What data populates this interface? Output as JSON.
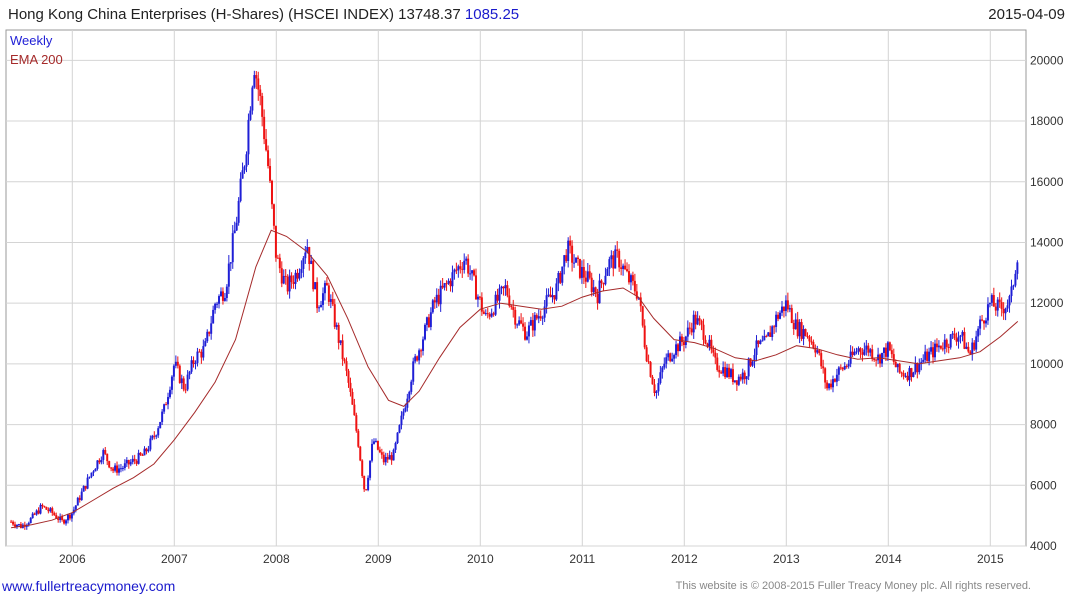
{
  "header": {
    "title": "Hong Kong China Enterprises (H-Shares) (HSCEI INDEX)",
    "price": "13748.37",
    "change": "1085.25",
    "date": "2015-04-09"
  },
  "footer": {
    "site": "www.fullertreacymoney.com",
    "copyright": "This website is © 2008-2015 Fuller Treacy Money plc. All rights reserved."
  },
  "colors": {
    "up": "#1f1fd6",
    "down": "#ee1111",
    "ema": "#a52a2a",
    "grid": "#d4d4d4"
  },
  "chart_data": {
    "type": "line",
    "x_unit": "year",
    "xlim": [
      2005.35,
      2015.35
    ],
    "ylim": [
      4000,
      21000
    ],
    "y_ticks": [
      4000,
      6000,
      8000,
      10000,
      12000,
      14000,
      16000,
      18000,
      20000
    ],
    "x_ticks": [
      2006,
      2007,
      2008,
      2009,
      2010,
      2011,
      2012,
      2013,
      2014,
      2015
    ],
    "grid": true,
    "legend_position": "top-left",
    "series": [
      {
        "name": "Weekly",
        "style": "candlestick",
        "points": [
          [
            2005.4,
            4800
          ],
          [
            2005.5,
            4650
          ],
          [
            2005.6,
            4900
          ],
          [
            2005.7,
            5300
          ],
          [
            2005.8,
            5100
          ],
          [
            2005.9,
            4800
          ],
          [
            2006.0,
            5100
          ],
          [
            2006.1,
            5800
          ],
          [
            2006.2,
            6500
          ],
          [
            2006.3,
            7100
          ],
          [
            2006.4,
            6500
          ],
          [
            2006.5,
            6600
          ],
          [
            2006.6,
            6800
          ],
          [
            2006.7,
            7000
          ],
          [
            2006.8,
            7600
          ],
          [
            2006.9,
            8500
          ],
          [
            2007.0,
            10000
          ],
          [
            2007.1,
            9200
          ],
          [
            2007.2,
            10200
          ],
          [
            2007.3,
            10500
          ],
          [
            2007.4,
            12000
          ],
          [
            2007.5,
            12500
          ],
          [
            2007.6,
            14500
          ],
          [
            2007.7,
            17000
          ],
          [
            2007.78,
            20000
          ],
          [
            2007.85,
            18500
          ],
          [
            2007.92,
            16500
          ],
          [
            2008.0,
            13500
          ],
          [
            2008.1,
            12500
          ],
          [
            2008.2,
            13000
          ],
          [
            2008.3,
            14000
          ],
          [
            2008.4,
            12000
          ],
          [
            2008.5,
            12500
          ],
          [
            2008.6,
            11000
          ],
          [
            2008.7,
            9500
          ],
          [
            2008.8,
            7500
          ],
          [
            2008.87,
            5700
          ],
          [
            2008.95,
            7500
          ],
          [
            2009.05,
            6800
          ],
          [
            2009.15,
            7000
          ],
          [
            2009.25,
            8500
          ],
          [
            2009.35,
            10000
          ],
          [
            2009.45,
            11000
          ],
          [
            2009.55,
            12000
          ],
          [
            2009.65,
            12500
          ],
          [
            2009.75,
            13000
          ],
          [
            2009.85,
            13500
          ],
          [
            2009.95,
            12500
          ],
          [
            2010.05,
            11500
          ],
          [
            2010.15,
            12000
          ],
          [
            2010.25,
            12500
          ],
          [
            2010.35,
            11500
          ],
          [
            2010.45,
            11000
          ],
          [
            2010.55,
            11500
          ],
          [
            2010.65,
            12000
          ],
          [
            2010.75,
            12500
          ],
          [
            2010.85,
            13800
          ],
          [
            2010.95,
            13200
          ],
          [
            2011.05,
            12800
          ],
          [
            2011.15,
            12300
          ],
          [
            2011.25,
            13300
          ],
          [
            2011.35,
            13500
          ],
          [
            2011.45,
            12800
          ],
          [
            2011.55,
            12300
          ],
          [
            2011.62,
            10500
          ],
          [
            2011.72,
            9000
          ],
          [
            2011.8,
            10000
          ],
          [
            2011.9,
            10500
          ],
          [
            2012.0,
            10800
          ],
          [
            2012.1,
            11500
          ],
          [
            2012.2,
            11000
          ],
          [
            2012.3,
            10000
          ],
          [
            2012.4,
            9800
          ],
          [
            2012.5,
            9500
          ],
          [
            2012.6,
            9700
          ],
          [
            2012.7,
            10500
          ],
          [
            2012.8,
            10700
          ],
          [
            2012.9,
            11500
          ],
          [
            2013.0,
            12000
          ],
          [
            2013.1,
            11200
          ],
          [
            2013.2,
            11000
          ],
          [
            2013.3,
            10500
          ],
          [
            2013.4,
            9200
          ],
          [
            2013.5,
            9700
          ],
          [
            2013.6,
            10000
          ],
          [
            2013.7,
            10500
          ],
          [
            2013.8,
            10500
          ],
          [
            2013.9,
            10200
          ],
          [
            2014.0,
            10500
          ],
          [
            2014.1,
            9700
          ],
          [
            2014.2,
            9700
          ],
          [
            2014.3,
            10000
          ],
          [
            2014.4,
            10300
          ],
          [
            2014.5,
            10600
          ],
          [
            2014.6,
            10800
          ],
          [
            2014.7,
            11000
          ],
          [
            2014.8,
            10300
          ],
          [
            2014.9,
            11300
          ],
          [
            2015.0,
            12000
          ],
          [
            2015.1,
            11800
          ],
          [
            2015.2,
            12100
          ],
          [
            2015.27,
            13748
          ]
        ]
      },
      {
        "name": "EMA 200",
        "style": "line",
        "points": [
          [
            2005.4,
            4600
          ],
          [
            2005.6,
            4700
          ],
          [
            2005.8,
            4850
          ],
          [
            2006.0,
            5100
          ],
          [
            2006.2,
            5500
          ],
          [
            2006.4,
            5900
          ],
          [
            2006.6,
            6250
          ],
          [
            2006.8,
            6700
          ],
          [
            2007.0,
            7500
          ],
          [
            2007.2,
            8400
          ],
          [
            2007.4,
            9400
          ],
          [
            2007.6,
            10800
          ],
          [
            2007.8,
            13200
          ],
          [
            2007.95,
            14400
          ],
          [
            2008.1,
            14200
          ],
          [
            2008.3,
            13700
          ],
          [
            2008.5,
            12900
          ],
          [
            2008.7,
            11500
          ],
          [
            2008.9,
            9900
          ],
          [
            2009.1,
            8800
          ],
          [
            2009.25,
            8600
          ],
          [
            2009.4,
            9100
          ],
          [
            2009.6,
            10200
          ],
          [
            2009.8,
            11200
          ],
          [
            2010.0,
            11800
          ],
          [
            2010.2,
            12000
          ],
          [
            2010.4,
            11900
          ],
          [
            2010.6,
            11800
          ],
          [
            2010.8,
            11900
          ],
          [
            2011.0,
            12200
          ],
          [
            2011.2,
            12400
          ],
          [
            2011.4,
            12500
          ],
          [
            2011.55,
            12200
          ],
          [
            2011.7,
            11500
          ],
          [
            2011.9,
            10800
          ],
          [
            2012.1,
            10700
          ],
          [
            2012.3,
            10500
          ],
          [
            2012.5,
            10200
          ],
          [
            2012.7,
            10100
          ],
          [
            2012.9,
            10300
          ],
          [
            2013.1,
            10600
          ],
          [
            2013.3,
            10500
          ],
          [
            2013.5,
            10300
          ],
          [
            2013.7,
            10150
          ],
          [
            2013.9,
            10200
          ],
          [
            2014.1,
            10100
          ],
          [
            2014.3,
            10000
          ],
          [
            2014.5,
            10100
          ],
          [
            2014.7,
            10200
          ],
          [
            2014.9,
            10400
          ],
          [
            2015.1,
            10900
          ],
          [
            2015.27,
            11400
          ]
        ]
      }
    ]
  }
}
